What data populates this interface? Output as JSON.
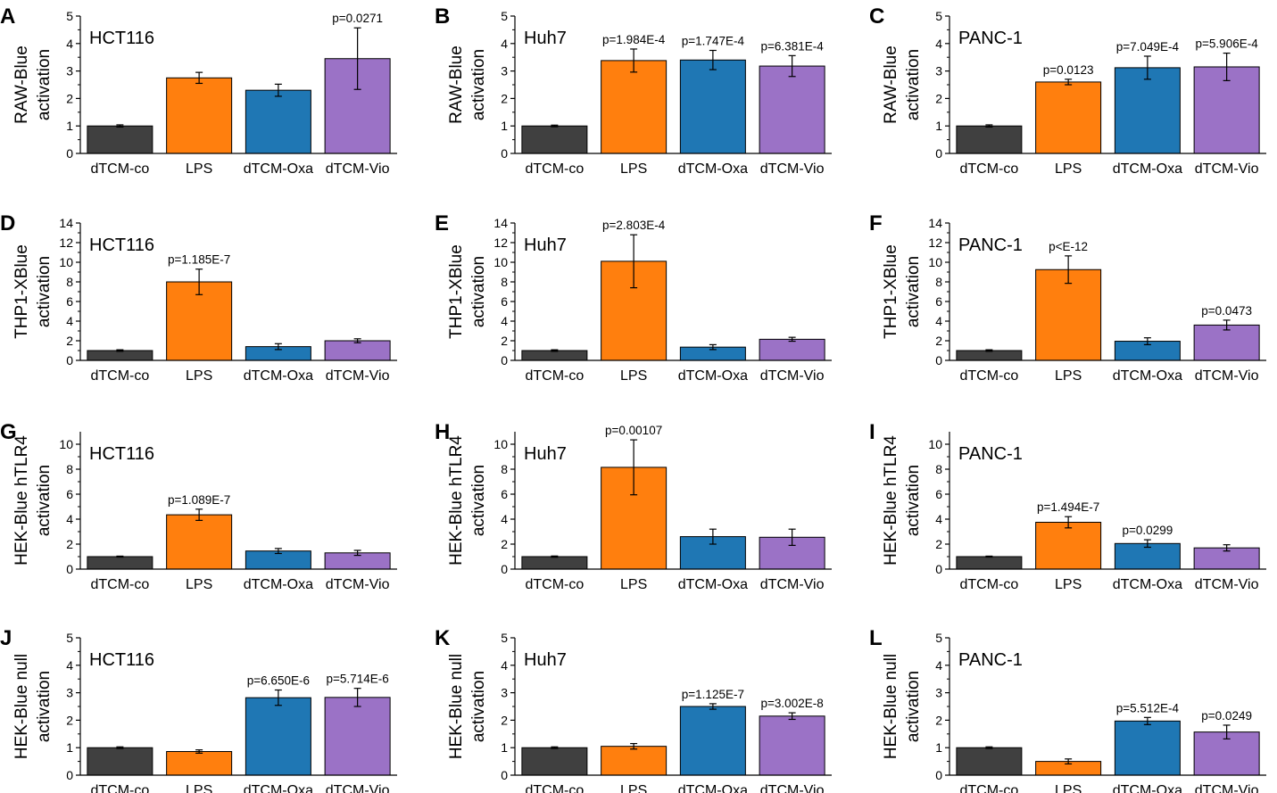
{
  "categories": [
    "dTCM-co",
    "LPS",
    "dTCM-Oxa",
    "dTCM-Vio"
  ],
  "colors": {
    "dTCM-co": "#404040",
    "LPS": "#ff7f0e",
    "dTCM-Oxa": "#1f77b4",
    "dTCM-Vio": "#9b72c6",
    "axis": "#000000"
  },
  "chart_data": [
    {
      "type": "bar",
      "panel": "A",
      "cell_line": "HCT116",
      "ylabel": [
        "RAW-Blue",
        "activation"
      ],
      "ylim": [
        0,
        5
      ],
      "yticks": [
        0,
        1,
        2,
        3,
        4,
        5
      ],
      "categories": [
        "dTCM-co",
        "LPS",
        "dTCM-Oxa",
        "dTCM-Vio"
      ],
      "values": [
        1.0,
        2.75,
        2.3,
        3.45
      ],
      "errors": [
        0.04,
        0.2,
        0.22,
        1.12
      ],
      "pvalues": [
        "",
        "",
        "",
        "p=0.0271"
      ]
    },
    {
      "type": "bar",
      "panel": "B",
      "cell_line": "Huh7",
      "ylabel": [
        "RAW-Blue",
        "activation"
      ],
      "ylim": [
        0,
        5
      ],
      "yticks": [
        0,
        1,
        2,
        3,
        4,
        5
      ],
      "categories": [
        "dTCM-co",
        "LPS",
        "dTCM-Oxa",
        "dTCM-Vio"
      ],
      "values": [
        1.0,
        3.38,
        3.4,
        3.18
      ],
      "errors": [
        0.03,
        0.42,
        0.35,
        0.38
      ],
      "pvalues": [
        "",
        "p=1.984E-4",
        "p=1.747E-4",
        "p=6.381E-4"
      ]
    },
    {
      "type": "bar",
      "panel": "C",
      "cell_line": "PANC-1",
      "ylabel": [
        "RAW-Blue",
        "activation"
      ],
      "ylim": [
        0,
        5
      ],
      "yticks": [
        0,
        1,
        2,
        3,
        4,
        5
      ],
      "categories": [
        "dTCM-co",
        "LPS",
        "dTCM-Oxa",
        "dTCM-Vio"
      ],
      "values": [
        1.0,
        2.6,
        3.12,
        3.15
      ],
      "errors": [
        0.04,
        0.1,
        0.42,
        0.5
      ],
      "pvalues": [
        "",
        "p=0.0123",
        "p=7.049E-4",
        "p=5.906E-4"
      ]
    },
    {
      "type": "bar",
      "panel": "D",
      "cell_line": "HCT116",
      "ylabel": [
        "THP1-XBlue",
        "activation"
      ],
      "ylim": [
        0,
        14
      ],
      "yticks": [
        0,
        2,
        4,
        6,
        8,
        10,
        12,
        14
      ],
      "categories": [
        "dTCM-co",
        "LPS",
        "dTCM-Oxa",
        "dTCM-Vio"
      ],
      "values": [
        1.0,
        8.0,
        1.4,
        2.0
      ],
      "errors": [
        0.08,
        1.3,
        0.3,
        0.2
      ],
      "pvalues": [
        "",
        "p=1.185E-7",
        "",
        ""
      ]
    },
    {
      "type": "bar",
      "panel": "E",
      "cell_line": "Huh7",
      "ylabel": [
        "THP1-XBlue",
        "activation"
      ],
      "ylim": [
        0,
        14
      ],
      "yticks": [
        0,
        2,
        4,
        6,
        8,
        10,
        12,
        14
      ],
      "categories": [
        "dTCM-co",
        "LPS",
        "dTCM-Oxa",
        "dTCM-Vio"
      ],
      "values": [
        1.0,
        10.1,
        1.35,
        2.15
      ],
      "errors": [
        0.08,
        2.7,
        0.25,
        0.2
      ],
      "pvalues": [
        "",
        "p=2.803E-4",
        "",
        ""
      ]
    },
    {
      "type": "bar",
      "panel": "F",
      "cell_line": "PANC-1",
      "ylabel": [
        "THP1-XBlue",
        "activation"
      ],
      "ylim": [
        0,
        14
      ],
      "yticks": [
        0,
        2,
        4,
        6,
        8,
        10,
        12,
        14
      ],
      "categories": [
        "dTCM-co",
        "LPS",
        "dTCM-Oxa",
        "dTCM-Vio"
      ],
      "values": [
        1.0,
        9.25,
        1.95,
        3.6
      ],
      "errors": [
        0.08,
        1.4,
        0.35,
        0.5
      ],
      "pvalues": [
        "",
        "p<E-12",
        "",
        "p=0.0473"
      ]
    },
    {
      "type": "bar",
      "panel": "G",
      "cell_line": "HCT116",
      "ylabel": [
        "HEK-Blue hTLR4",
        "activation"
      ],
      "ylim": [
        0,
        11
      ],
      "yticks": [
        0,
        2,
        4,
        6,
        8,
        10
      ],
      "categories": [
        "dTCM-co",
        "LPS",
        "dTCM-Oxa",
        "dTCM-Vio"
      ],
      "values": [
        1.0,
        4.35,
        1.45,
        1.3
      ],
      "errors": [
        0.04,
        0.45,
        0.2,
        0.2
      ],
      "pvalues": [
        "",
        "p=1.089E-7",
        "",
        ""
      ]
    },
    {
      "type": "bar",
      "panel": "H",
      "cell_line": "Huh7",
      "ylabel": [
        "HEK-Blue hTLR4",
        "activation"
      ],
      "ylim": [
        0,
        11
      ],
      "yticks": [
        0,
        2,
        4,
        6,
        8,
        10
      ],
      "categories": [
        "dTCM-co",
        "LPS",
        "dTCM-Oxa",
        "dTCM-Vio"
      ],
      "values": [
        1.0,
        8.15,
        2.6,
        2.55
      ],
      "errors": [
        0.05,
        2.2,
        0.6,
        0.65
      ],
      "pvalues": [
        "",
        "p=0.00107",
        "",
        ""
      ]
    },
    {
      "type": "bar",
      "panel": "I",
      "cell_line": "PANC-1",
      "ylabel": [
        "HEK-Blue hTLR4",
        "activation"
      ],
      "ylim": [
        0,
        11
      ],
      "yticks": [
        0,
        2,
        4,
        6,
        8,
        10
      ],
      "categories": [
        "dTCM-co",
        "LPS",
        "dTCM-Oxa",
        "dTCM-Vio"
      ],
      "values": [
        1.0,
        3.75,
        2.05,
        1.7
      ],
      "errors": [
        0.04,
        0.45,
        0.3,
        0.25
      ],
      "pvalues": [
        "",
        "p=1.494E-7",
        "p=0.0299",
        ""
      ]
    },
    {
      "type": "bar",
      "panel": "J",
      "cell_line": "HCT116",
      "ylabel": [
        "HEK-Blue null",
        "activation"
      ],
      "ylim": [
        0,
        5
      ],
      "yticks": [
        0,
        1,
        2,
        3,
        4,
        5
      ],
      "categories": [
        "dTCM-co",
        "LPS",
        "dTCM-Oxa",
        "dTCM-Vio"
      ],
      "values": [
        1.0,
        0.86,
        2.82,
        2.83
      ],
      "errors": [
        0.03,
        0.06,
        0.28,
        0.33
      ],
      "pvalues": [
        "",
        "",
        "p=6.650E-6",
        "p=5.714E-6"
      ]
    },
    {
      "type": "bar",
      "panel": "K",
      "cell_line": "Huh7",
      "ylabel": [
        "HEK-Blue null",
        "activation"
      ],
      "ylim": [
        0,
        5
      ],
      "yticks": [
        0,
        1,
        2,
        3,
        4,
        5
      ],
      "categories": [
        "dTCM-co",
        "LPS",
        "dTCM-Oxa",
        "dTCM-Vio"
      ],
      "values": [
        1.0,
        1.05,
        2.5,
        2.15
      ],
      "errors": [
        0.03,
        0.1,
        0.1,
        0.12
      ],
      "pvalues": [
        "",
        "",
        "p=1.125E-7",
        "p=3.002E-8"
      ]
    },
    {
      "type": "bar",
      "panel": "L",
      "cell_line": "PANC-1",
      "ylabel": [
        "HEK-Blue null",
        "activation"
      ],
      "ylim": [
        0,
        5
      ],
      "yticks": [
        0,
        1,
        2,
        3,
        4,
        5
      ],
      "categories": [
        "dTCM-co",
        "LPS",
        "dTCM-Oxa",
        "dTCM-Vio"
      ],
      "values": [
        1.0,
        0.5,
        1.97,
        1.57
      ],
      "errors": [
        0.03,
        0.09,
        0.13,
        0.25
      ],
      "pvalues": [
        "",
        "",
        "p=5.512E-4",
        "p=0.0249"
      ]
    }
  ]
}
